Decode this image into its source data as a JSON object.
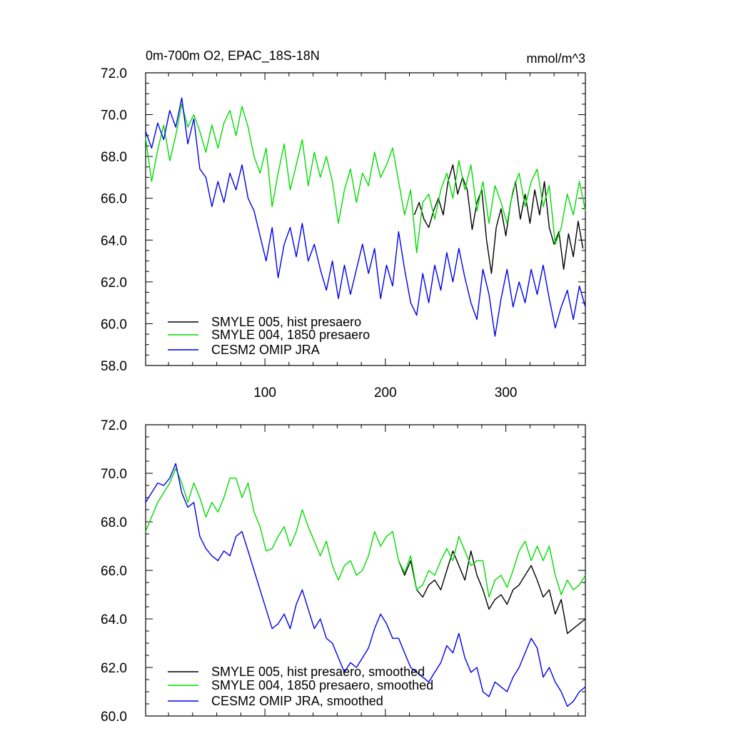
{
  "chart_data": [
    {
      "type": "line",
      "panel": "top",
      "title_left": "0m-700m O2, EPAC_18S-18N",
      "title_right": "mmol/m^3",
      "xlabel": "",
      "ylabel": "",
      "xlim": [
        1,
        366
      ],
      "ylim": [
        58,
        72
      ],
      "y_ticks": [
        "72.0",
        "70.0",
        "68.0",
        "66.0",
        "64.0",
        "62.0",
        "60.0",
        "58.0"
      ],
      "x_ticks": [
        "100",
        "200",
        "300"
      ],
      "legend": [
        "SMYLE 005, hist presaero",
        "SMYLE 004, 1850 presaero",
        "CESM2 OMIP JRA"
      ],
      "series": [
        {
          "name": "SMYLE 005, hist presaero",
          "color": "#000000",
          "x": [
            224,
            228,
            232,
            236,
            240,
            244,
            248,
            252,
            256,
            260,
            264,
            268,
            272,
            276,
            280,
            284,
            288,
            292,
            296,
            300,
            304,
            308,
            312,
            316,
            320,
            324,
            328,
            332,
            336,
            340,
            344,
            348,
            352,
            356,
            360,
            364
          ],
          "values": [
            65.2,
            65.8,
            65.0,
            64.6,
            65.4,
            66.0,
            65.2,
            66.8,
            67.6,
            66.2,
            67.0,
            66.4,
            64.5,
            65.8,
            66.4,
            64.0,
            62.4,
            64.6,
            65.5,
            64.2,
            65.8,
            66.8,
            65.0,
            66.2,
            64.8,
            66.4,
            65.2,
            66.8,
            64.6,
            63.8,
            64.4,
            62.6,
            64.3,
            63.2,
            64.9,
            63.6
          ]
        },
        {
          "name": "SMYLE 004, 1850 presaero",
          "color": "#00dd00",
          "x": [
            1,
            6,
            11,
            16,
            21,
            26,
            31,
            36,
            41,
            46,
            51,
            56,
            61,
            66,
            71,
            76,
            81,
            86,
            91,
            96,
            101,
            106,
            111,
            116,
            121,
            126,
            131,
            136,
            141,
            146,
            151,
            156,
            161,
            166,
            171,
            176,
            181,
            186,
            191,
            196,
            201,
            206,
            211,
            216,
            221,
            226,
            231,
            236,
            241,
            246,
            251,
            256,
            261,
            266,
            271,
            276,
            281,
            286,
            291,
            296,
            301,
            306,
            311,
            316,
            321,
            326,
            331,
            336,
            341,
            346,
            351,
            356,
            361,
            366
          ],
          "values": [
            68.9,
            66.8,
            68.3,
            69.5,
            67.8,
            69.0,
            70.5,
            69.4,
            70.0,
            69.2,
            68.2,
            69.5,
            68.4,
            69.6,
            70.2,
            69.0,
            70.4,
            69.4,
            68.0,
            67.2,
            68.4,
            65.6,
            67.2,
            68.6,
            66.4,
            67.6,
            68.8,
            66.6,
            68.2,
            67.0,
            68.0,
            66.8,
            64.8,
            66.4,
            67.4,
            65.8,
            67.2,
            66.6,
            68.2,
            67.0,
            67.6,
            68.4,
            66.8,
            65.2,
            66.4,
            63.4,
            65.8,
            66.2,
            65.0,
            66.4,
            67.2,
            66.0,
            67.8,
            66.4,
            67.6,
            65.4,
            66.8,
            64.8,
            66.6,
            65.8,
            64.8,
            66.4,
            67.2,
            65.6,
            66.8,
            67.4,
            65.6,
            66.6,
            63.8,
            64.6,
            66.2,
            65.2,
            66.8,
            65.4
          ]
        },
        {
          "name": "CESM2 OMIP JRA",
          "color": "#0000ee",
          "x": [
            1,
            6,
            11,
            16,
            21,
            26,
            31,
            36,
            41,
            46,
            51,
            56,
            61,
            66,
            71,
            76,
            81,
            86,
            91,
            96,
            101,
            106,
            111,
            116,
            121,
            126,
            131,
            136,
            141,
            146,
            151,
            156,
            161,
            166,
            171,
            176,
            181,
            186,
            191,
            196,
            201,
            206,
            211,
            216,
            221,
            226,
            231,
            236,
            241,
            246,
            251,
            256,
            261,
            266,
            271,
            276,
            281,
            286,
            291,
            296,
            301,
            306,
            311,
            316,
            321,
            326,
            331,
            336,
            341,
            346,
            351,
            356,
            361,
            366
          ],
          "values": [
            69.2,
            68.4,
            69.6,
            68.8,
            70.2,
            69.4,
            70.8,
            68.6,
            69.8,
            67.4,
            67.0,
            65.6,
            66.8,
            65.8,
            67.2,
            66.4,
            67.6,
            66.0,
            65.4,
            64.2,
            63.0,
            64.6,
            62.2,
            63.8,
            64.6,
            63.2,
            64.8,
            63.0,
            63.8,
            62.6,
            61.6,
            63.0,
            61.2,
            62.8,
            61.4,
            62.6,
            63.8,
            62.4,
            63.6,
            61.2,
            62.8,
            61.8,
            64.4,
            62.6,
            61.0,
            60.4,
            62.4,
            61.0,
            62.8,
            61.6,
            63.4,
            62.0,
            63.6,
            62.2,
            61.0,
            60.2,
            62.6,
            61.4,
            59.4,
            61.2,
            62.6,
            60.8,
            62.0,
            61.0,
            62.6,
            61.4,
            62.8,
            61.2,
            59.8,
            60.8,
            61.6,
            60.2,
            61.8,
            60.8
          ]
        }
      ]
    },
    {
      "type": "line",
      "panel": "bottom",
      "xlabel": "",
      "ylabel": "",
      "xlim": [
        1,
        366
      ],
      "ylim": [
        60,
        72
      ],
      "y_ticks": [
        "72.0",
        "70.0",
        "68.0",
        "66.0",
        "64.0",
        "62.0",
        "60.0"
      ],
      "legend": [
        "SMYLE 005, hist presaero, smoothed",
        "SMYLE 004, 1850 presaero, smoothed",
        "CESM2 OMIP JRA, smoothed"
      ],
      "series": [
        {
          "name": "SMYLE 005, hist presaero, smoothed",
          "color": "#000000",
          "x": [
            211,
            216,
            221,
            226,
            231,
            236,
            241,
            246,
            251,
            256,
            261,
            266,
            271,
            276,
            281,
            286,
            291,
            296,
            301,
            306,
            311,
            316,
            321,
            326,
            331,
            336,
            341,
            346,
            351,
            356,
            361,
            366
          ],
          "values": [
            66.4,
            65.8,
            66.4,
            65.2,
            64.9,
            65.4,
            65.6,
            65.2,
            66.0,
            66.8,
            66.2,
            65.6,
            66.8,
            65.8,
            65.2,
            64.4,
            64.8,
            65.0,
            64.6,
            65.2,
            65.4,
            65.8,
            66.2,
            65.6,
            64.9,
            65.2,
            64.2,
            64.8,
            63.4,
            63.6,
            63.8,
            64.0
          ]
        },
        {
          "name": "SMYLE 004, 1850 presaero, smoothed",
          "color": "#00dd00",
          "x": [
            1,
            6,
            11,
            16,
            21,
            26,
            31,
            36,
            41,
            46,
            51,
            56,
            61,
            66,
            71,
            76,
            81,
            86,
            91,
            96,
            101,
            106,
            111,
            116,
            121,
            126,
            131,
            136,
            141,
            146,
            151,
            156,
            161,
            166,
            171,
            176,
            181,
            186,
            191,
            196,
            201,
            206,
            211,
            216,
            221,
            226,
            231,
            236,
            241,
            246,
            251,
            256,
            261,
            266,
            271,
            276,
            281,
            286,
            291,
            296,
            301,
            306,
            311,
            316,
            321,
            326,
            331,
            336,
            341,
            346,
            351,
            356,
            361,
            366
          ],
          "values": [
            67.6,
            68.2,
            68.8,
            69.2,
            69.6,
            70.2,
            69.6,
            68.8,
            69.6,
            69.0,
            68.2,
            68.8,
            68.4,
            69.0,
            69.8,
            69.8,
            69.0,
            69.6,
            68.4,
            67.8,
            66.8,
            66.9,
            67.4,
            67.8,
            67.0,
            67.6,
            68.5,
            67.8,
            67.2,
            66.6,
            67.2,
            66.2,
            65.6,
            66.2,
            66.4,
            65.8,
            66.0,
            66.6,
            67.6,
            67.0,
            67.4,
            67.6,
            66.4,
            65.9,
            66.6,
            65.2,
            65.4,
            66.0,
            65.8,
            66.4,
            66.9,
            66.4,
            67.4,
            66.8,
            66.2,
            66.4,
            66.4,
            64.9,
            65.6,
            65.8,
            65.3,
            66.0,
            66.8,
            67.2,
            66.4,
            67.0,
            66.4,
            67.0,
            65.8,
            65.0,
            65.6,
            65.2,
            65.4,
            65.8
          ]
        },
        {
          "name": "CESM2 OMIP JRA, smoothed",
          "color": "#0000ee",
          "x": [
            1,
            6,
            11,
            16,
            21,
            26,
            31,
            36,
            41,
            46,
            51,
            56,
            61,
            66,
            71,
            76,
            81,
            86,
            91,
            96,
            101,
            106,
            111,
            116,
            121,
            126,
            131,
            136,
            141,
            146,
            151,
            156,
            161,
            166,
            171,
            176,
            181,
            186,
            191,
            196,
            201,
            206,
            211,
            216,
            221,
            226,
            231,
            236,
            241,
            246,
            251,
            256,
            261,
            266,
            271,
            276,
            281,
            286,
            291,
            296,
            301,
            306,
            311,
            316,
            321,
            326,
            331,
            336,
            341,
            346,
            351,
            356,
            361,
            366
          ],
          "values": [
            68.8,
            69.2,
            69.6,
            69.5,
            69.8,
            70.4,
            69.2,
            68.6,
            68.8,
            67.4,
            66.9,
            66.6,
            66.4,
            66.8,
            66.6,
            67.4,
            67.6,
            66.8,
            66.0,
            65.2,
            64.4,
            63.6,
            63.8,
            64.2,
            63.6,
            64.6,
            65.2,
            64.4,
            63.6,
            64.0,
            63.2,
            63.0,
            62.4,
            61.8,
            62.2,
            62.0,
            62.4,
            62.8,
            63.6,
            64.2,
            63.8,
            63.2,
            63.2,
            62.6,
            62.0,
            61.8,
            61.6,
            61.4,
            61.8,
            62.2,
            62.9,
            62.6,
            63.4,
            62.4,
            61.8,
            62.0,
            61.0,
            60.8,
            61.4,
            61.2,
            61.0,
            61.6,
            62.0,
            62.6,
            63.2,
            62.8,
            61.6,
            62.0,
            61.4,
            61.0,
            60.4,
            60.6,
            61.0,
            61.2
          ]
        }
      ]
    }
  ]
}
